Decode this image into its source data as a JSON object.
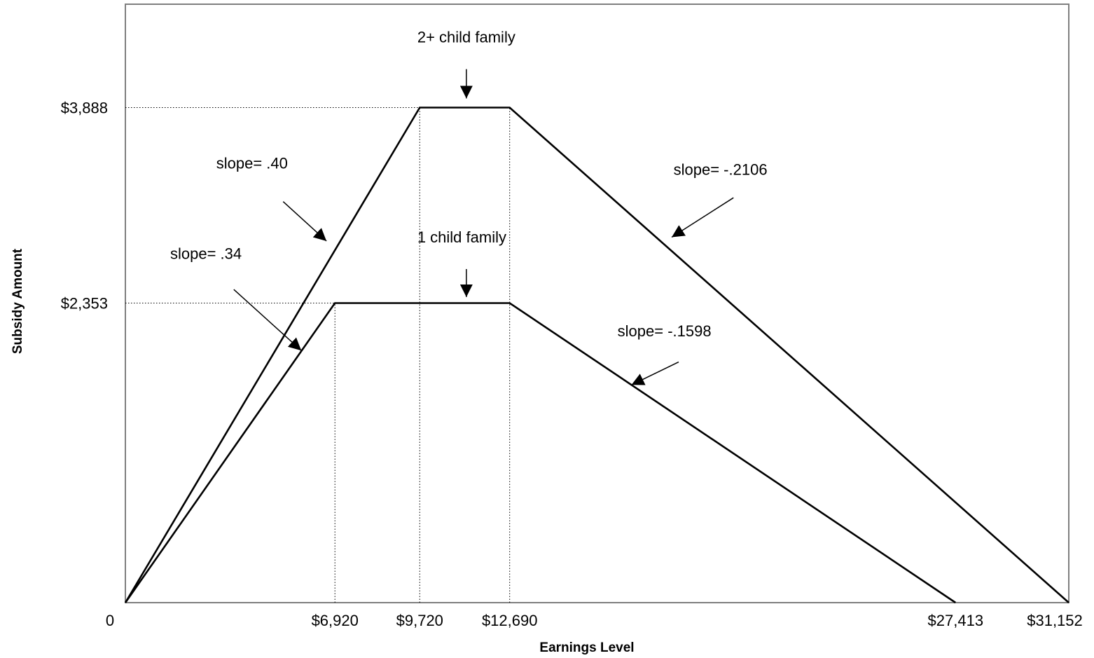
{
  "chart_data": {
    "type": "line",
    "title": "",
    "xlabel": "Earnings Level",
    "ylabel": "Subsidy Amount",
    "xlim": [
      0,
      31152
    ],
    "ylim": [
      0,
      4700
    ],
    "grid": false,
    "x_ticks": [
      {
        "value": 0,
        "label": "0"
      },
      {
        "value": 6920,
        "label": "$6,920"
      },
      {
        "value": 9720,
        "label": "$9,720"
      },
      {
        "value": 12690,
        "label": "$12,690"
      },
      {
        "value": 27413,
        "label": "$27,413"
      },
      {
        "value": 31152,
        "label": "$31,152"
      }
    ],
    "y_ticks": [
      {
        "value": 2353,
        "label": "$2,353"
      },
      {
        "value": 3888,
        "label": "$3,888"
      }
    ],
    "series": [
      {
        "name": "2+ child family",
        "x": [
          0,
          9720,
          12690,
          31152
        ],
        "y": [
          0,
          3888,
          3888,
          0
        ]
      },
      {
        "name": "1 child family",
        "x": [
          0,
          6920,
          12690,
          27413
        ],
        "y": [
          0,
          2353,
          2353,
          0
        ]
      }
    ],
    "guides": [
      {
        "kind": "h",
        "y": 3888,
        "x_to": 9720
      },
      {
        "kind": "h",
        "y": 2353,
        "x_to": 6920
      },
      {
        "kind": "v",
        "x": 6920,
        "y_to": 2353
      },
      {
        "kind": "v",
        "x": 9720,
        "y_to": 3888
      },
      {
        "kind": "v",
        "x": 12690,
        "y_to": 3888
      }
    ],
    "annotations": [
      {
        "text": "2+ child family",
        "tx": 9640,
        "ty": 4400,
        "ax1": 11260,
        "ay1": 4190,
        "ax2": 11260,
        "ay2": 3960
      },
      {
        "text": "1 child family",
        "tx": 9640,
        "ty": 2830,
        "ax1": 11260,
        "ay1": 2620,
        "ax2": 11260,
        "ay2": 2400
      },
      {
        "text": "slope= .40",
        "tx": 3000,
        "ty": 3410,
        "ax1": 5210,
        "ay1": 3150,
        "ax2": 6640,
        "ay2": 2840
      },
      {
        "text": "slope= .34",
        "tx": 1480,
        "ty": 2700,
        "ax1": 3580,
        "ay1": 2460,
        "ax2": 5810,
        "ay2": 1980
      },
      {
        "text": "slope= -.2106",
        "tx": 18100,
        "ty": 3360,
        "ax1": 20080,
        "ay1": 3180,
        "ax2": 18040,
        "ay2": 2870
      },
      {
        "text": "slope= -.1598",
        "tx": 16250,
        "ty": 2090,
        "ax1": 18270,
        "ay1": 1890,
        "ax2": 16710,
        "ay2": 1710
      }
    ]
  }
}
